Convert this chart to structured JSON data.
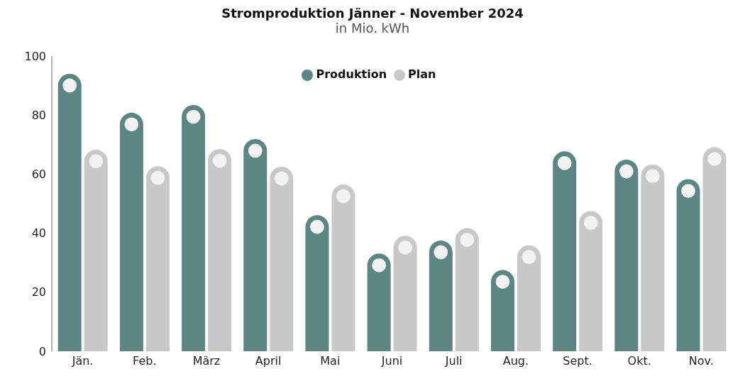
{
  "chart_data": {
    "type": "bar",
    "title": "Stromproduktion Jänner - November 2024",
    "subtitle": "in Mio. kWh",
    "categories": [
      "Jän.",
      "Feb.",
      "März",
      "April",
      "Mai",
      "Juni",
      "Juli",
      "Aug.",
      "Sept.",
      "Okt.",
      "Nov."
    ],
    "series": [
      {
        "name": "Produktion",
        "color": "#5b8682",
        "values": [
          94,
          80.8,
          83.4,
          71.9,
          46.1,
          33.1,
          37.5,
          27.5,
          67.7,
          64.9,
          58.3
        ]
      },
      {
        "name": "Plan",
        "color": "#c8c8c8",
        "values": [
          68.3,
          62.7,
          68.5,
          62.5,
          56.5,
          39.1,
          41.7,
          35.9,
          47.5,
          63.3,
          69.1
        ]
      }
    ],
    "ylim": [
      0,
      100
    ],
    "yticks": [
      0,
      20,
      40,
      60,
      80,
      100
    ],
    "grid": false,
    "legend": "top",
    "marker": "circle"
  }
}
